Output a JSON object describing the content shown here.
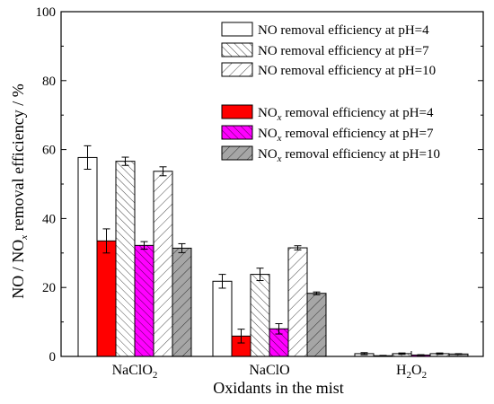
{
  "chart_data": {
    "type": "bar",
    "xlabel": "Oxidants in the mist",
    "ylabel": {
      "pre": "NO / NO",
      "sub": "x",
      "post": " removal efficiency / %"
    },
    "ylim": [
      0,
      100
    ],
    "yticks": [
      0,
      20,
      40,
      60,
      80,
      100
    ],
    "categories": [
      {
        "base": "NaClO",
        "sub": "2"
      },
      {
        "base": "NaClO",
        "sub": ""
      },
      {
        "base": "H",
        "sub": "2",
        "base2": "O",
        "sub2": "2"
      }
    ],
    "series": [
      {
        "name": {
          "pre": "NO removal efficiency at pH=4",
          "sub": "",
          "post": ""
        },
        "style": "white",
        "values": [
          57.7,
          21.8,
          0.8
        ],
        "errors": [
          3.4,
          2.0,
          0.3
        ]
      },
      {
        "name": {
          "pre": "NO removal efficiency at pH=7",
          "sub": "",
          "post": ""
        },
        "style": "hatch-fine",
        "values": [
          56.6,
          23.8,
          0.8
        ],
        "errors": [
          1.2,
          1.8,
          0.2
        ]
      },
      {
        "name": {
          "pre": "NO removal efficiency at pH=10",
          "sub": "",
          "post": ""
        },
        "style": "hatch-wide",
        "values": [
          53.7,
          31.5,
          0.8
        ],
        "errors": [
          1.3,
          0.6,
          0.2
        ]
      },
      {
        "name": {
          "pre": "NO",
          "sub": "x",
          "post": " removal efficiency at pH=4"
        },
        "style": "solid",
        "color": "#ff0000",
        "values": [
          33.5,
          5.9,
          0.2
        ],
        "errors": [
          3.5,
          2.0,
          0.1
        ]
      },
      {
        "name": {
          "pre": "NO",
          "sub": "x",
          "post": " removal efficiency at pH=7"
        },
        "style": "hatch-color",
        "color": "#ff00ff",
        "values": [
          32.2,
          8.0,
          0.4
        ],
        "errors": [
          1.1,
          1.5,
          0.1
        ]
      },
      {
        "name": {
          "pre": "NO",
          "sub": "x",
          "post": " removal efficiency at pH=10"
        },
        "style": "hatch-color",
        "color": "#a6a6a6",
        "values": [
          31.4,
          18.3,
          0.7
        ],
        "errors": [
          1.3,
          0.4,
          0.1
        ]
      }
    ],
    "bar_order": [
      0,
      3,
      1,
      4,
      2,
      5
    ],
    "legend_position": "top-right",
    "grid": false,
    "ticks_inside": true
  }
}
